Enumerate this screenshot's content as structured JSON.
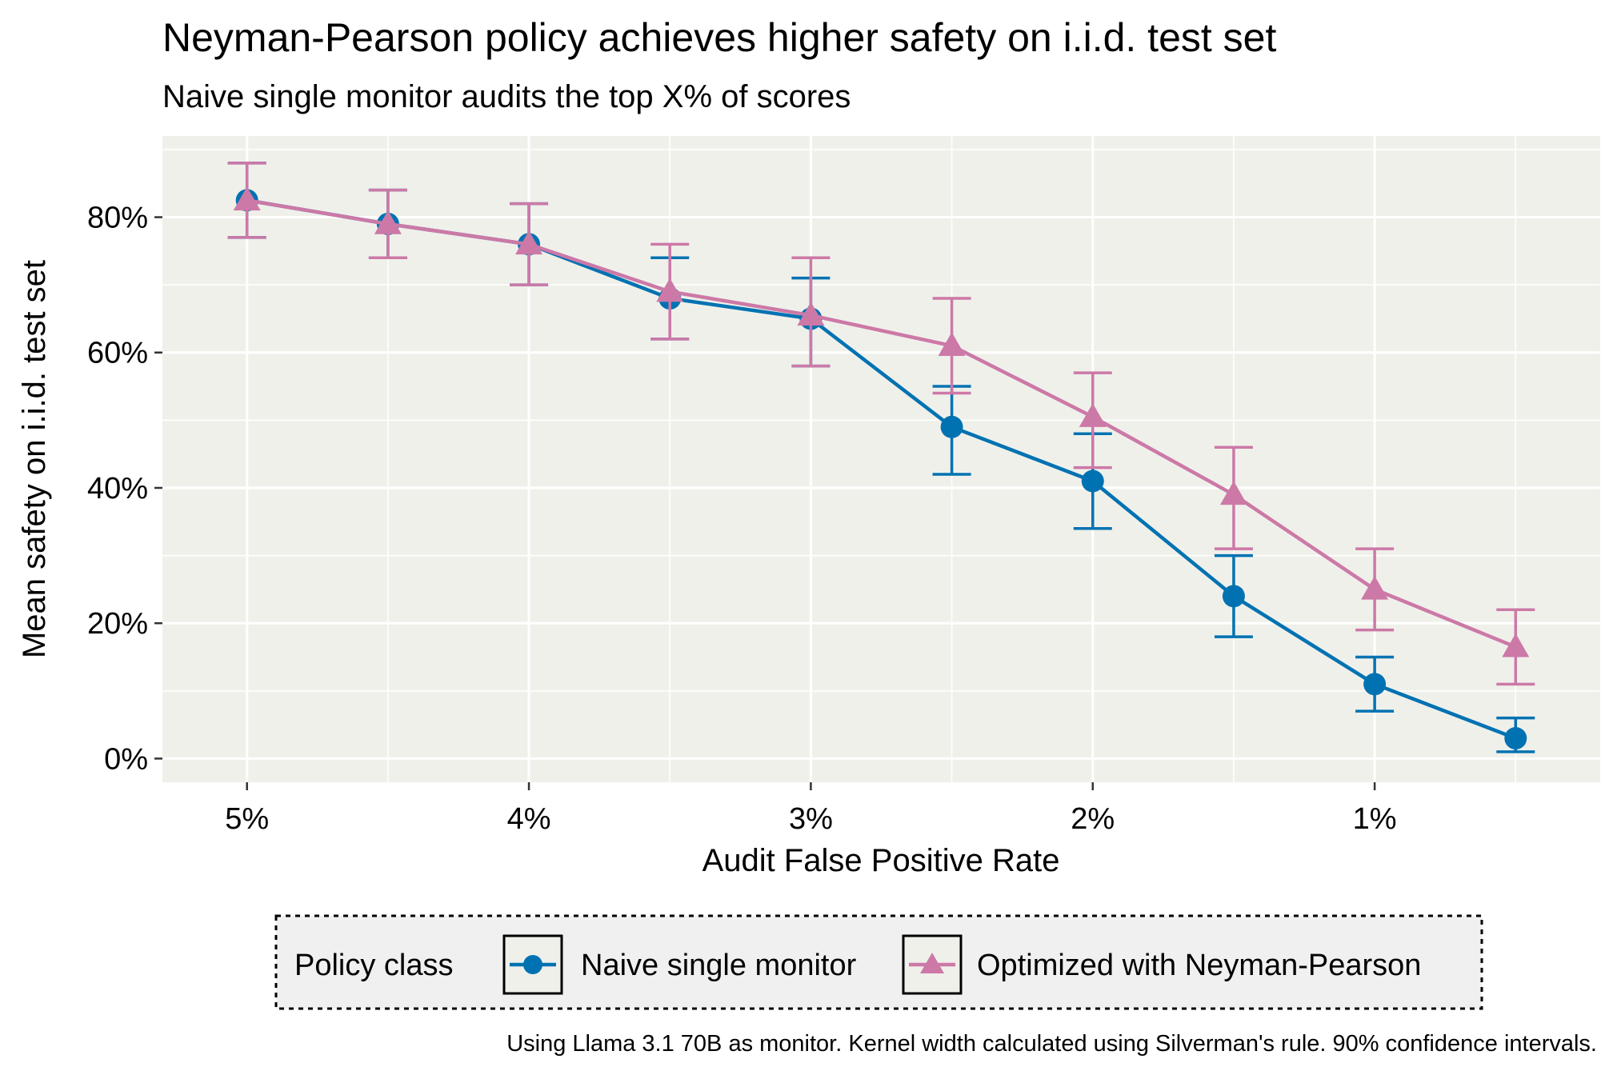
{
  "chart_data": {
    "type": "line",
    "title": "Neyman-Pearson policy achieves higher safety on i.i.d. test set",
    "subtitle": "Naive single monitor audits the top X% of scores",
    "xlabel": "Audit False Positive Rate",
    "ylabel": "Mean safety on i.i.d. test set",
    "caption": "Using Llama 3.1 70B as monitor. Kernel width calculated using Silverman's rule. 90% confidence intervals.",
    "x_reversed": true,
    "xlim": [
      0.2,
      5.3
    ],
    "ylim": [
      -3.5,
      92
    ],
    "x_ticks": [
      {
        "value": 5,
        "label": "5%"
      },
      {
        "value": 4,
        "label": "4%"
      },
      {
        "value": 3,
        "label": "3%"
      },
      {
        "value": 2,
        "label": "2%"
      },
      {
        "value": 1,
        "label": "1%"
      }
    ],
    "y_ticks": [
      {
        "value": 0,
        "label": "0%"
      },
      {
        "value": 20,
        "label": "20%"
      },
      {
        "value": 40,
        "label": "40%"
      },
      {
        "value": 60,
        "label": "60%"
      },
      {
        "value": 80,
        "label": "80%"
      }
    ],
    "grid": true,
    "legend_title": "Policy class",
    "legend_position": "bottom",
    "x": [
      5,
      4.5,
      4,
      3.5,
      3,
      2.5,
      2,
      1.5,
      1,
      0.5
    ],
    "series": [
      {
        "name": "Naive single monitor",
        "color": "#0072B2",
        "marker": "circle",
        "y": [
          82.5,
          79,
          76,
          68,
          65,
          49,
          41,
          24,
          11,
          3
        ],
        "lower": [
          77,
          74,
          70,
          62,
          58,
          42,
          34,
          18,
          7,
          1
        ],
        "upper": [
          88,
          84,
          82,
          74,
          71,
          55,
          48,
          30,
          15,
          6
        ]
      },
      {
        "name": "Optimized with Neyman-Pearson",
        "color": "#CC79A7",
        "marker": "triangle",
        "y": [
          82.5,
          79,
          76,
          69,
          65.5,
          61,
          50.5,
          39,
          25,
          16.5
        ],
        "lower": [
          77,
          74,
          70,
          62,
          58,
          54,
          43,
          31,
          19,
          11
        ],
        "upper": [
          88,
          84,
          82,
          76,
          74,
          68,
          57,
          46,
          31,
          22
        ]
      }
    ]
  }
}
